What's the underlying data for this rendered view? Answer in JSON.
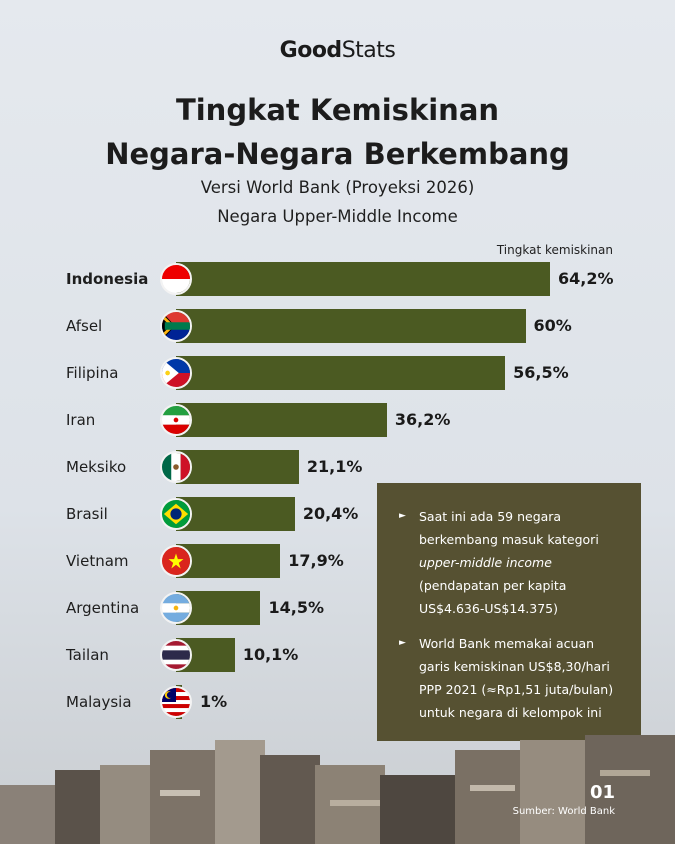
{
  "brand": {
    "part1": "Good",
    "part2": "Stats"
  },
  "title_line1": "Tingkat Kemiskinan",
  "title_line2": "Negara-Negara Berkembang",
  "subtitle_line1": "Versi World Bank (Proyeksi 2026)",
  "subtitle_line2": "Negara Upper-Middle Income",
  "legend_label": "Tingkat kemiskinan",
  "chart_data": {
    "type": "bar",
    "orientation": "horizontal",
    "categories": [
      "Indonesia",
      "Afsel",
      "Filipina",
      "Iran",
      "Meksiko",
      "Brasil",
      "Vietnam",
      "Argentina",
      "Tailan",
      "Malaysia"
    ],
    "values": [
      64.2,
      60,
      56.5,
      36.2,
      21.1,
      20.4,
      17.9,
      14.5,
      10.1,
      1
    ],
    "value_labels": [
      "64,2%",
      "60%",
      "56,5%",
      "36,2%",
      "21,1%",
      "20,4%",
      "17,9%",
      "14,5%",
      "10,1%",
      "1%"
    ],
    "highlight": "Indonesia",
    "bar_color": "#4b5a22",
    "xlim": [
      0,
      64.2
    ]
  },
  "flags": [
    "flag-indonesia-icon",
    "flag-south-africa-icon",
    "flag-philippines-icon",
    "flag-iran-icon",
    "flag-mexico-icon",
    "flag-brazil-icon",
    "flag-vietnam-icon",
    "flag-argentina-icon",
    "flag-thailand-icon",
    "flag-malaysia-icon"
  ],
  "notes": {
    "note1_a": "Saat ini ada 59 negara berkembang masuk kategori",
    "note1_italic": "upper-middle income",
    "note1_b": "(pendapatan per kapita US$4.636-US$14.375)",
    "note2": "World Bank memakai acuan garis kemiskinan US$8,30/hari PPP 2021 (≈Rp1,51 juta/bulan) untuk negara di kelompok ini"
  },
  "page_number": "01",
  "source": "Sumber: World Bank"
}
